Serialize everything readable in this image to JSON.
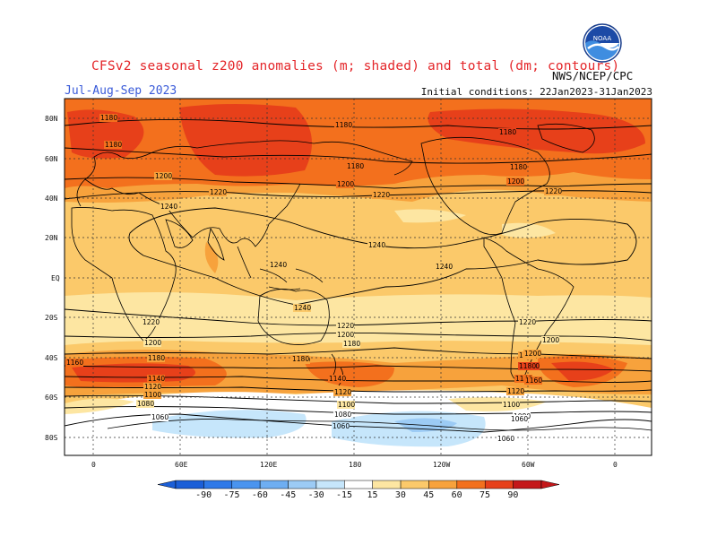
{
  "title": "CFSv2 seasonal z200 anomalies (m; shaded) and total (dm; contours)",
  "period": "Jul-Aug-Sep 2023",
  "initial_conditions": "Initial conditions: 22Jan2023-31Jan2023",
  "agency": "NWS/NCEP/CPC",
  "logo_text": "NOAA",
  "lat_labels": [
    "80N",
    "60N",
    "40N",
    "20N",
    "EQ",
    "20S",
    "40S",
    "60S",
    "80S"
  ],
  "lon_labels": [
    "0",
    "60E",
    "120E",
    "180",
    "120W",
    "60W",
    "0"
  ],
  "colorbar": {
    "ticks": [
      "-90",
      "-75",
      "-60",
      "-45",
      "-30",
      "-15",
      "15",
      "30",
      "45",
      "60",
      "75",
      "90"
    ],
    "colors": [
      "#1b5fd8",
      "#2e79e8",
      "#4a94ef",
      "#6eaef2",
      "#9ccbf5",
      "#c6e6fb",
      "#ffffff",
      "#fde6a2",
      "#fbc96a",
      "#f7a23c",
      "#f3701d",
      "#e7401a",
      "#c4171a"
    ]
  },
  "contour_labels": [
    {
      "text": "1180"
    },
    {
      "text": "1180"
    },
    {
      "text": "1180"
    },
    {
      "text": "1180"
    },
    {
      "text": "1180"
    },
    {
      "text": "1200"
    },
    {
      "text": "1220"
    },
    {
      "text": "1240"
    },
    {
      "text": "1200"
    },
    {
      "text": "1220"
    },
    {
      "text": "1220"
    },
    {
      "text": "1200"
    },
    {
      "text": "1180"
    },
    {
      "text": "1240"
    },
    {
      "text": "1240"
    },
    {
      "text": "1240"
    },
    {
      "text": "1240"
    },
    {
      "text": "1220"
    },
    {
      "text": "1220"
    },
    {
      "text": "1200"
    },
    {
      "text": "1200"
    },
    {
      "text": "1180"
    },
    {
      "text": "1180"
    },
    {
      "text": "1160"
    },
    {
      "text": "1140"
    },
    {
      "text": "1120"
    },
    {
      "text": "1100"
    },
    {
      "text": "1080"
    },
    {
      "text": "1060"
    },
    {
      "text": "1220"
    },
    {
      "text": "1200"
    },
    {
      "text": "1180"
    },
    {
      "text": "1140"
    },
    {
      "text": "1120"
    },
    {
      "text": "1100"
    },
    {
      "text": "1080"
    },
    {
      "text": "1060"
    },
    {
      "text": "1220"
    },
    {
      "text": "1200"
    },
    {
      "text": "1180"
    },
    {
      "text": "1180"
    },
    {
      "text": "1140"
    },
    {
      "text": "1120"
    },
    {
      "text": "1100"
    },
    {
      "text": "1080"
    },
    {
      "text": "1060"
    },
    {
      "text": "1060"
    },
    {
      "text": "1180"
    },
    {
      "text": "1160"
    }
  ]
}
